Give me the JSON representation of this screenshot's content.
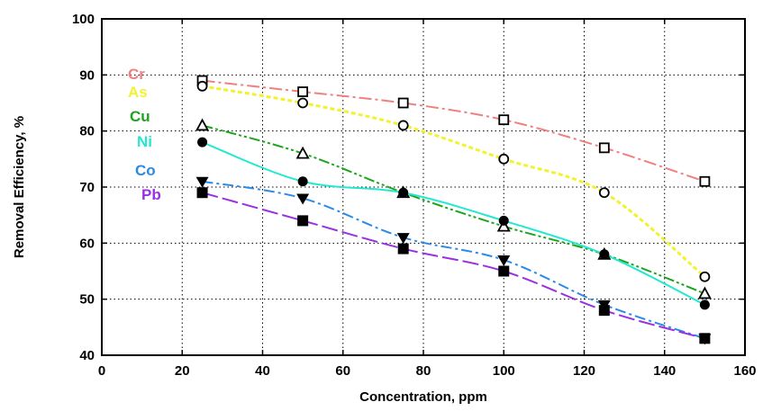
{
  "chart_data": {
    "type": "line",
    "xlabel": "Concentration, ppm",
    "ylabel": "Removal Efficiency, %",
    "xlim": [
      0,
      160
    ],
    "ylim": [
      40,
      100
    ],
    "xticks": [
      0,
      20,
      40,
      60,
      80,
      100,
      120,
      140,
      160
    ],
    "yticks": [
      40,
      50,
      60,
      70,
      80,
      90,
      100
    ],
    "grid": true,
    "legend_placement": "left, stacked labels inside plot",
    "x": [
      25,
      50,
      75,
      100,
      125,
      150
    ],
    "series": [
      {
        "name": "Cr",
        "color": "#f08080",
        "marker": "square-open",
        "values": [
          89,
          87,
          85,
          82,
          77,
          71
        ]
      },
      {
        "name": "As",
        "color": "#f2f230",
        "marker": "circle-open",
        "values": [
          88,
          85,
          81,
          75,
          69,
          54
        ]
      },
      {
        "name": "Cu",
        "color": "#1ca51c",
        "marker": "triangle-open",
        "values": [
          81,
          76,
          69,
          63,
          58,
          51
        ]
      },
      {
        "name": "Ni",
        "color": "#22e8d0",
        "marker": "circle-filled",
        "values": [
          78,
          71,
          69,
          64,
          58,
          49
        ]
      },
      {
        "name": "Co",
        "color": "#2a8ae8",
        "marker": "triangle-down-filled",
        "values": [
          71,
          68,
          61,
          57,
          49,
          43
        ]
      },
      {
        "name": "Pb",
        "color": "#9b30e0",
        "marker": "square-filled",
        "values": [
          69,
          64,
          59,
          55,
          48,
          43
        ]
      }
    ]
  }
}
